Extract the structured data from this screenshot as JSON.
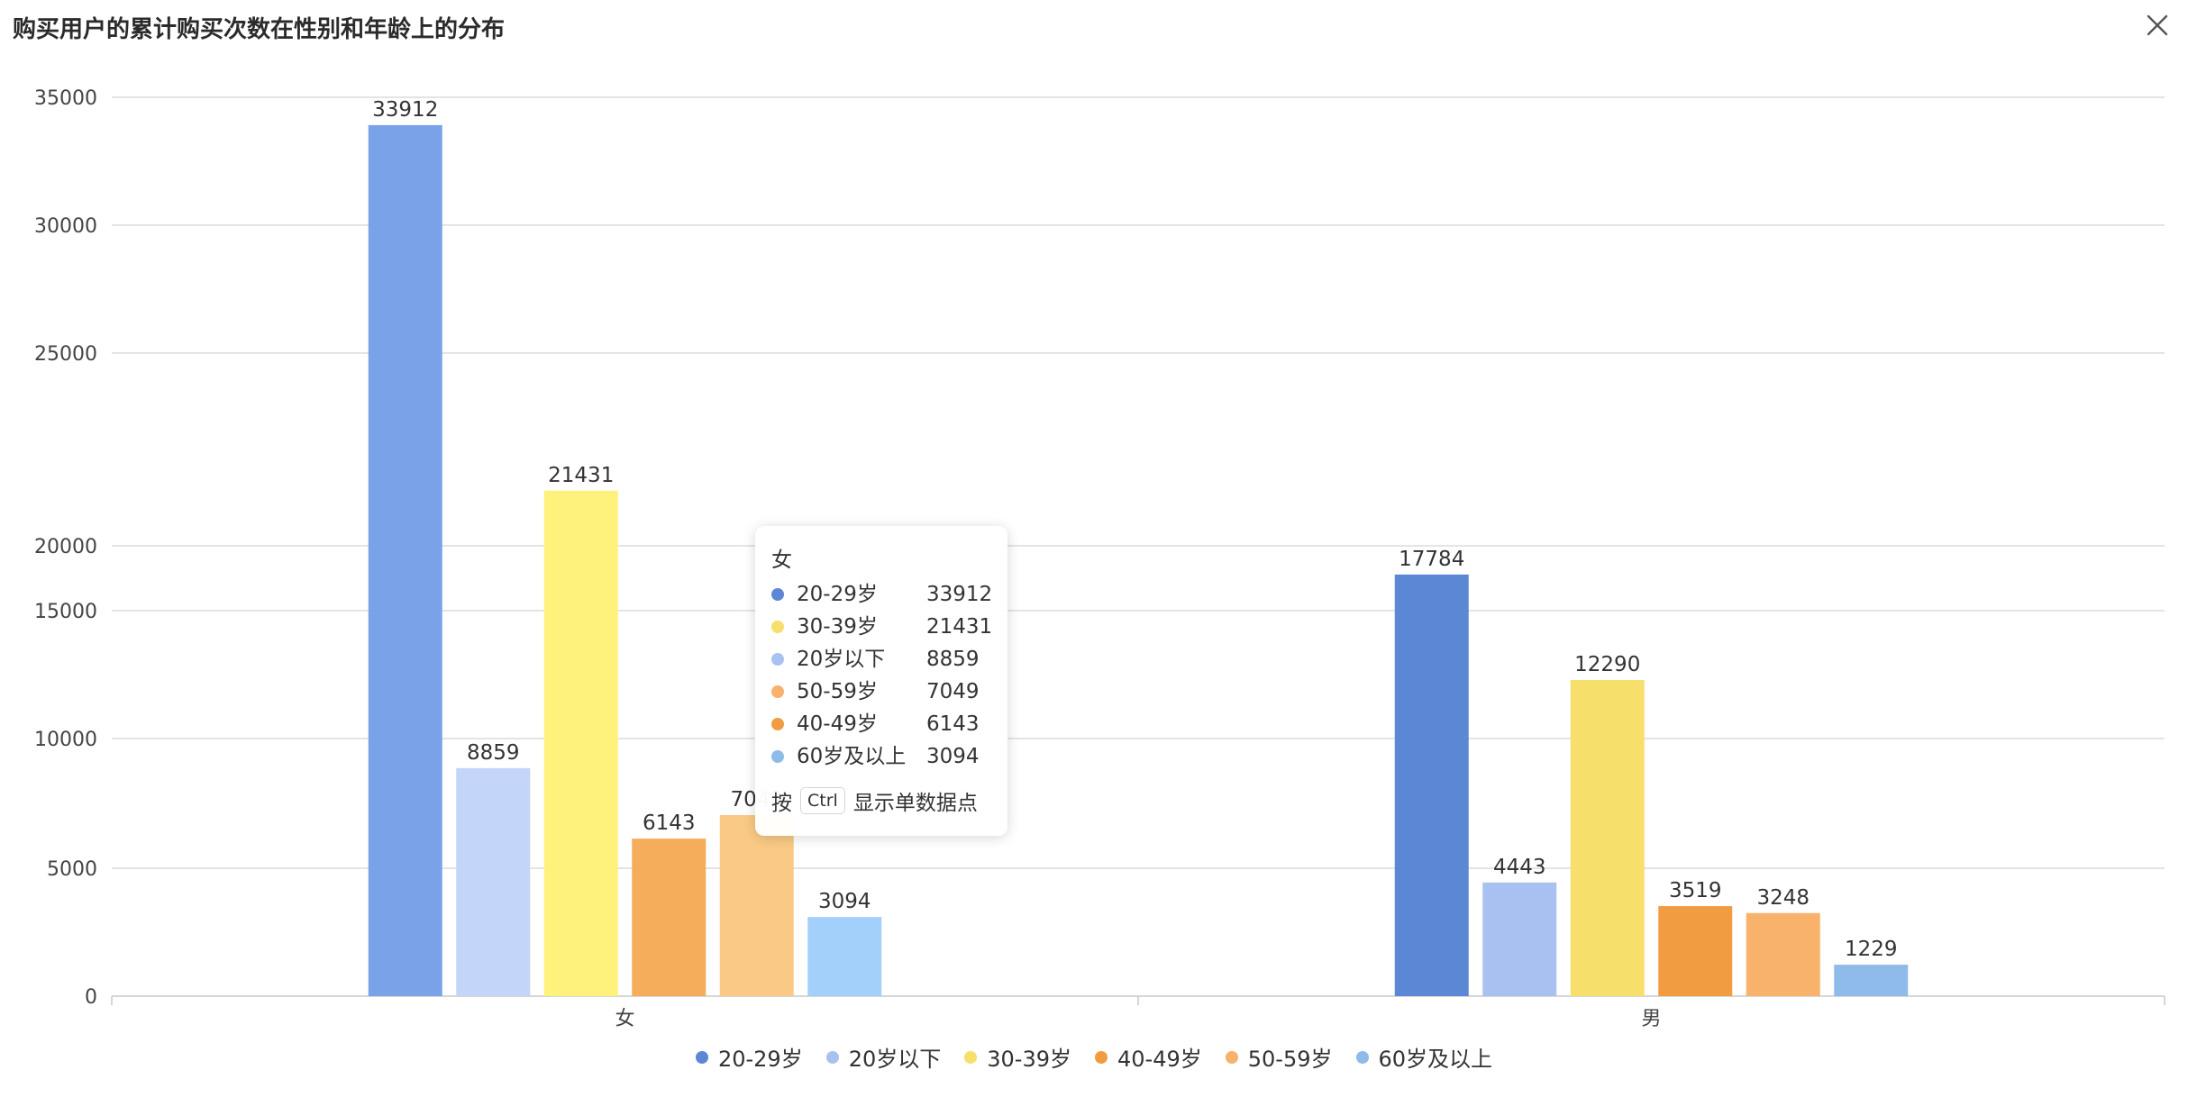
{
  "title": "购买用户的累计购买次数在性别和年龄上的分布",
  "close_icon": "close-icon",
  "chart_data": {
    "type": "bar",
    "title": "购买用户的累计购买次数在性别和年龄上的分布",
    "categories": [
      "女",
      "男"
    ],
    "series": [
      {
        "name": "20-29岁",
        "values": [
          33912,
          17784
        ]
      },
      {
        "name": "20岁以下",
        "values": [
          8859,
          4443
        ]
      },
      {
        "name": "30-39岁",
        "values": [
          21431,
          12290
        ]
      },
      {
        "name": "40-49岁",
        "values": [
          6143,
          3519
        ]
      },
      {
        "name": "50-59岁",
        "values": [
          7049,
          3248
        ]
      },
      {
        "name": "60岁及以上",
        "values": [
          3094,
          1229
        ]
      }
    ],
    "y_ticks": [
      "0",
      "5000",
      "10000",
      "15000",
      "20000",
      "25000",
      "30000",
      "35000"
    ],
    "ylim": [
      0,
      35000
    ],
    "grid": true,
    "legend_position": "bottom",
    "colors": {
      "20-29岁": "#5b87d4",
      "20岁以下": "#a9c1f1",
      "30-39岁": "#f6df6b",
      "40-49岁": "#f19c41",
      "50-59岁": "#f8b26c",
      "60岁及以上": "#8ebbea"
    }
  },
  "legend": [
    {
      "label": "20-29岁",
      "color": "#5b87d4"
    },
    {
      "label": "20岁以下",
      "color": "#a9c1f1"
    },
    {
      "label": "30-39岁",
      "color": "#f6df6b"
    },
    {
      "label": "40-49岁",
      "color": "#f19c41"
    },
    {
      "label": "50-59岁",
      "color": "#f8b26c"
    },
    {
      "label": "60岁及以上",
      "color": "#8ebbea"
    }
  ],
  "tooltip": {
    "title": "女",
    "rows": [
      {
        "label": "20-29岁",
        "value": "33912",
        "color": "#5b87d4"
      },
      {
        "label": "30-39岁",
        "value": "21431",
        "color": "#f6df6b"
      },
      {
        "label": "20岁以下",
        "value": "8859",
        "color": "#a9c1f1"
      },
      {
        "label": "50-59岁",
        "value": "7049",
        "color": "#f8b26c"
      },
      {
        "label": "40-49岁",
        "value": "6143",
        "color": "#f19c41"
      },
      {
        "label": "60岁及以上",
        "value": "3094",
        "color": "#8ebbea"
      }
    ],
    "hint_prefix": "按",
    "hint_key": "Ctrl",
    "hint_suffix": "显示单数据点"
  }
}
